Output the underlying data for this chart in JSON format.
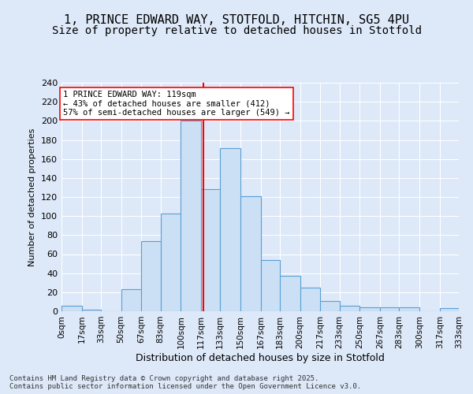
{
  "title1": "1, PRINCE EDWARD WAY, STOTFOLD, HITCHIN, SG5 4PU",
  "title2": "Size of property relative to detached houses in Stotfold",
  "xlabel": "Distribution of detached houses by size in Stotfold",
  "ylabel": "Number of detached properties",
  "bin_edges": [
    0,
    17,
    33,
    50,
    67,
    83,
    100,
    117,
    133,
    150,
    167,
    183,
    200,
    217,
    233,
    250,
    267,
    283,
    300,
    317,
    333
  ],
  "bar_values": [
    6,
    2,
    0,
    23,
    74,
    103,
    200,
    128,
    171,
    121,
    54,
    37,
    25,
    11,
    6,
    4,
    4,
    4,
    0,
    3
  ],
  "bar_color": "#cce0f5",
  "bar_edge_color": "#5a9fd4",
  "vline_x": 119,
  "vline_color": "red",
  "annotation_text": "1 PRINCE EDWARD WAY: 119sqm\n← 43% of detached houses are smaller (412)\n57% of semi-detached houses are larger (549) →",
  "annotation_box_color": "white",
  "annotation_box_edge": "red",
  "ylim": [
    0,
    240
  ],
  "yticks": [
    0,
    20,
    40,
    60,
    80,
    100,
    120,
    140,
    160,
    180,
    200,
    220,
    240
  ],
  "background_color": "#dde8f8",
  "footer_text": "Contains HM Land Registry data © Crown copyright and database right 2025.\nContains public sector information licensed under the Open Government Licence v3.0.",
  "title_fontsize": 11,
  "subtitle_fontsize": 10
}
